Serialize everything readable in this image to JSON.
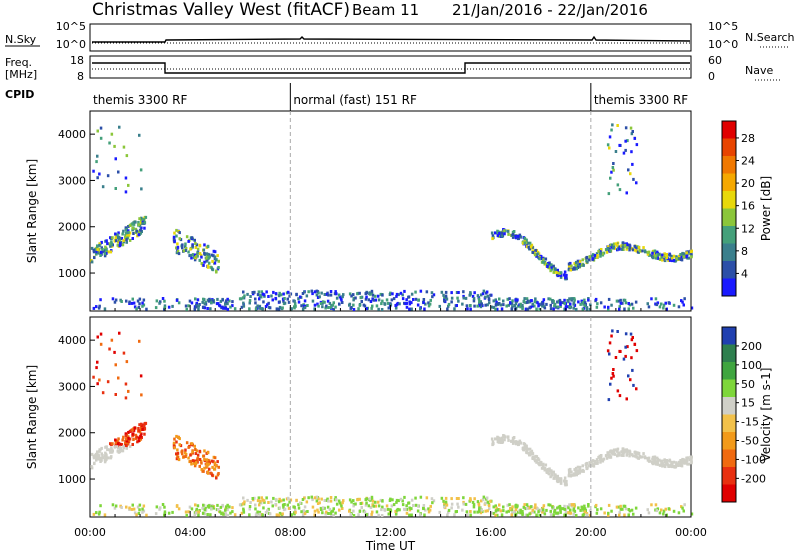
{
  "header": {
    "station": "Christmas Valley West (fitACF)",
    "beam": "Beam 11",
    "date_range": "21/Jan/2016 - 22/Jan/2016"
  },
  "strip_labels": {
    "nsky": "N.Sky",
    "nsearch": "N.Search",
    "freq_line1": "Freq.",
    "freq_line2": "[MHz]",
    "nave": "Nave",
    "cpid": "CPID"
  },
  "strip_ticks": {
    "noise_left": [
      "10^5",
      "10^0"
    ],
    "noise_right": [
      "10^5",
      "10^0"
    ],
    "freq_left": [
      "18",
      "8"
    ],
    "freq_right": [
      "60",
      "0"
    ]
  },
  "cpid_segments": [
    {
      "label": "themis 3300 RF",
      "start_h": 0,
      "end_h": 8
    },
    {
      "label": "normal (fast) 151 RF",
      "start_h": 8,
      "end_h": 20
    },
    {
      "label": "themis 3300 RF",
      "start_h": 20,
      "end_h": 24
    }
  ],
  "chart_data": [
    {
      "type": "heatmap",
      "parameter": "Power",
      "ylabel": "Slant Range [km]",
      "xlabel": "Time UT",
      "xlim_hours": [
        0,
        24
      ],
      "ylim": [
        180,
        4500
      ],
      "x_ticks": [
        "00:00",
        "04:00",
        "08:00",
        "12:00",
        "16:00",
        "20:00",
        "00:00"
      ],
      "y_ticks": [
        1000,
        2000,
        3000,
        4000
      ],
      "colorbar": {
        "label": "Power [dB]",
        "tick_labels": [
          "4",
          "8",
          "12",
          "16",
          "20",
          "24",
          "28"
        ],
        "range": [
          0,
          30
        ],
        "colors": [
          "#1a1aff",
          "#2c4fa8",
          "#3a7f8c",
          "#44a07a",
          "#8bc63a",
          "#e8d80a",
          "#f5a800",
          "#f07800",
          "#e84400",
          "#e00000"
        ]
      }
    },
    {
      "type": "heatmap",
      "parameter": "Velocity",
      "ylabel": "Slant Range [km]",
      "xlabel": "Time UT",
      "xlim_hours": [
        0,
        24
      ],
      "ylim": [
        180,
        4500
      ],
      "x_ticks": [
        "00:00",
        "04:00",
        "08:00",
        "12:00",
        "16:00",
        "20:00",
        "00:00"
      ],
      "y_ticks": [
        1000,
        2000,
        3000,
        4000
      ],
      "colorbar": {
        "label": "Velocity [m s-1]",
        "tick_labels": [
          "200",
          "100",
          "50",
          "15",
          "-15",
          "-50",
          "-100",
          "-200"
        ],
        "range": [
          -250,
          250
        ],
        "colors": [
          "#2040b0",
          "#2e7f4e",
          "#3fa53f",
          "#7ed63a",
          "#cfcfc7",
          "#f2c14a",
          "#f29a1a",
          "#f06a10",
          "#e83010",
          "#e00000"
        ]
      }
    }
  ]
}
